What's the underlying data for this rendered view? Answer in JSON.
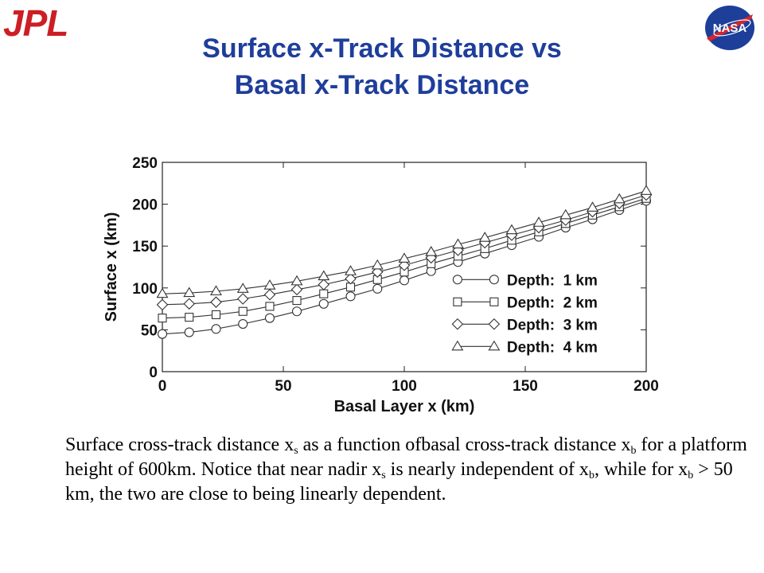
{
  "logos": {
    "left_text": "JPL",
    "right_text": "NASA",
    "jpl_color": "#cc1f24",
    "nasa_color": "#1d3f99"
  },
  "title": {
    "line1": "Surface x-Track Distance vs",
    "line2": "Basal x-Track Distance",
    "color": "#1f3e9b"
  },
  "chart_data": {
    "type": "line",
    "xlabel": "Basal Layer x (km)",
    "ylabel": "Surface x (km)",
    "xlim": [
      0,
      200
    ],
    "ylim": [
      0,
      250
    ],
    "xticks": [
      0,
      50,
      100,
      150,
      200
    ],
    "yticks": [
      0,
      50,
      100,
      150,
      200,
      250
    ],
    "grid": false,
    "legend_position": "lower-right",
    "x": [
      0,
      11.1,
      22.2,
      33.3,
      44.4,
      55.6,
      66.7,
      77.8,
      88.9,
      100,
      111.1,
      122.2,
      133.3,
      144.4,
      155.6,
      166.7,
      177.8,
      188.9,
      200
    ],
    "series": [
      {
        "name": "Depth:  1 km",
        "marker": "circle",
        "values": [
          45,
          47,
          51,
          57,
          64,
          72,
          81,
          90,
          99,
          109,
          120,
          131,
          141,
          151,
          161,
          172,
          182,
          193,
          204
        ]
      },
      {
        "name": "Depth:  2 km",
        "marker": "square",
        "values": [
          64,
          65,
          68,
          72,
          78,
          85,
          93,
          101,
          110,
          119,
          129,
          138,
          147,
          157,
          167,
          177,
          187,
          197,
          207
        ]
      },
      {
        "name": "Depth:  3 km",
        "marker": "diamond",
        "values": [
          80,
          81,
          83,
          87,
          92,
          98,
          104,
          111,
          119,
          127,
          136,
          145,
          154,
          163,
          172,
          181,
          191,
          201,
          211
        ]
      },
      {
        "name": "Depth:  4 km",
        "marker": "triangle",
        "values": [
          93,
          94,
          96,
          99,
          103,
          108,
          114,
          120,
          127,
          135,
          143,
          152,
          160,
          169,
          178,
          187,
          196,
          206,
          216
        ]
      }
    ]
  },
  "caption": {
    "t1": "Surface cross-track distance x",
    "s1": "s",
    "t2": " as a function ofbasal cross-track distance x",
    "s2": "b",
    "t3": " for a platform height of 600km. Notice that near nadir x",
    "s3": "s",
    "t4": " is nearly independent of x",
    "s4": "b",
    "t5": ", while for x",
    "s5": "b",
    "t6": " > 50 km, the two are close to being linearly dependent."
  }
}
